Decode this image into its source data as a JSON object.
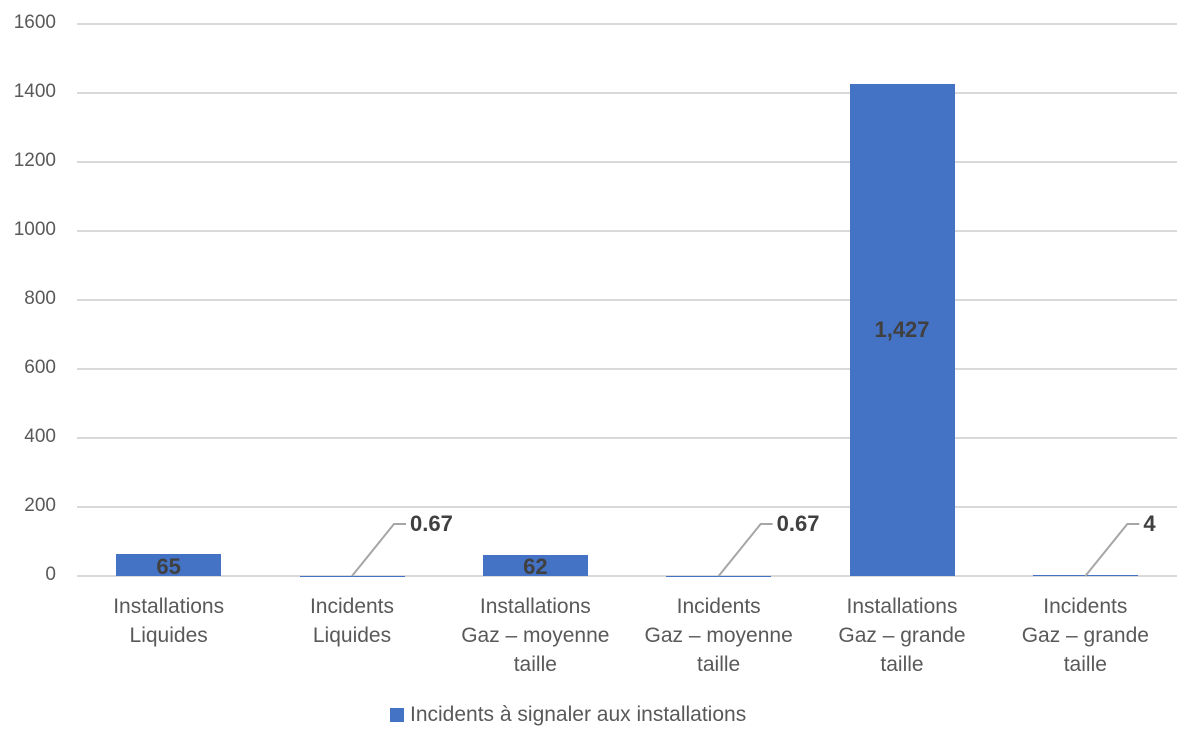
{
  "chart_data": {
    "type": "bar",
    "title": "",
    "xlabel": "",
    "ylabel": "",
    "ylim": [
      0,
      1600
    ],
    "yticks": [
      0,
      200,
      400,
      600,
      800,
      1000,
      1200,
      1400,
      1600
    ],
    "grid": true,
    "legend_position": "bottom",
    "categories": [
      "Installations Liquides",
      "Incidents Liquides",
      "Installations Gaz – moyenne taille",
      "Incidents Gaz – moyenne taille",
      "Installations Gaz – grande taille",
      "Incidents Gaz – grande taille"
    ],
    "category_lines": [
      [
        "Installations",
        "Liquides"
      ],
      [
        "Incidents",
        "Liquides"
      ],
      [
        "Installations",
        "Gaz – moyenne",
        "taille"
      ],
      [
        "Incidents",
        "Gaz – moyenne",
        "taille"
      ],
      [
        "Installations",
        "Gaz – grande",
        "taille"
      ],
      [
        "Incidents",
        "Gaz – grande",
        "taille"
      ]
    ],
    "series": [
      {
        "name": "Incidents à signaler aux installations",
        "color": "#4472c4",
        "values": [
          65,
          0.67,
          62,
          0.67,
          1427,
          4
        ],
        "data_labels": [
          "65",
          "0.67",
          "62",
          "0.67",
          "1,427",
          "4"
        ]
      }
    ]
  },
  "legend": {
    "label": "Incidents à signaler aux installations",
    "color": "#4472c4"
  }
}
